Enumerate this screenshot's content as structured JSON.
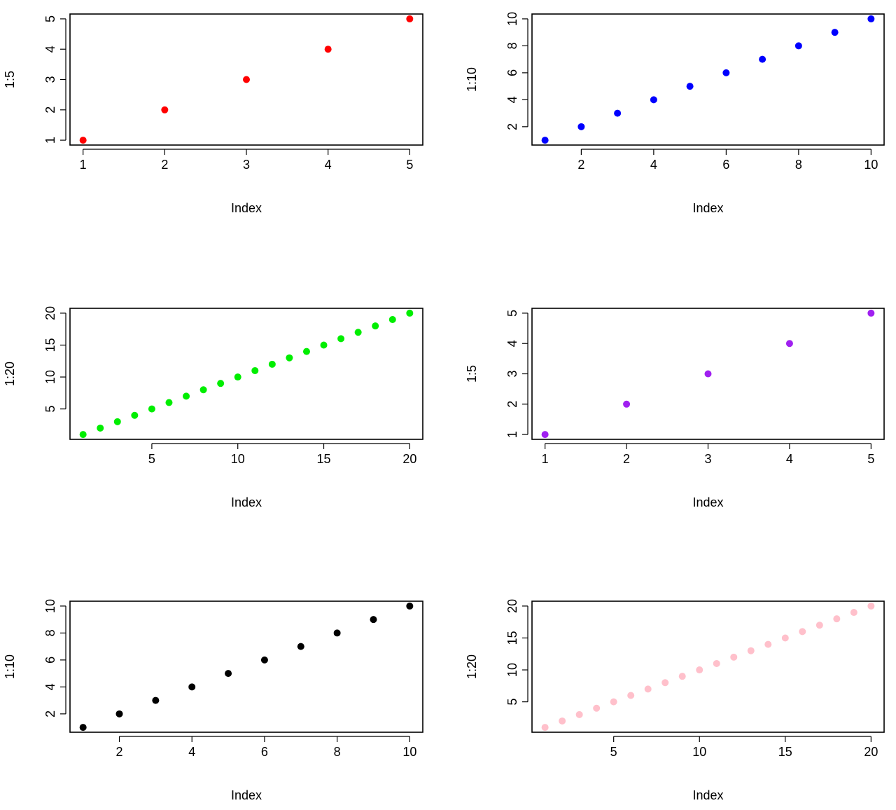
{
  "chart_data": [
    {
      "type": "scatter",
      "title": "",
      "xlabel": "Index",
      "ylabel": "1:5",
      "color": "#ff0000",
      "x": [
        1,
        2,
        3,
        4,
        5
      ],
      "y": [
        1,
        2,
        3,
        4,
        5
      ],
      "xlim": [
        1,
        5
      ],
      "ylim": [
        1,
        5
      ],
      "xticks": [
        1,
        2,
        3,
        4,
        5
      ],
      "yticks": [
        1,
        2,
        3,
        4,
        5
      ],
      "grid": false
    },
    {
      "type": "scatter",
      "title": "",
      "xlabel": "Index",
      "ylabel": "1:10",
      "color": "#0000ff",
      "x": [
        1,
        2,
        3,
        4,
        5,
        6,
        7,
        8,
        9,
        10
      ],
      "y": [
        1,
        2,
        3,
        4,
        5,
        6,
        7,
        8,
        9,
        10
      ],
      "xlim": [
        1,
        10
      ],
      "ylim": [
        1,
        10
      ],
      "xticks": [
        2,
        4,
        6,
        8,
        10
      ],
      "yticks": [
        2,
        4,
        6,
        8,
        10
      ],
      "grid": false
    },
    {
      "type": "scatter",
      "title": "",
      "xlabel": "Index",
      "ylabel": "1:20",
      "color": "#00ee00",
      "x": [
        1,
        2,
        3,
        4,
        5,
        6,
        7,
        8,
        9,
        10,
        11,
        12,
        13,
        14,
        15,
        16,
        17,
        18,
        19,
        20
      ],
      "y": [
        1,
        2,
        3,
        4,
        5,
        6,
        7,
        8,
        9,
        10,
        11,
        12,
        13,
        14,
        15,
        16,
        17,
        18,
        19,
        20
      ],
      "xlim": [
        1,
        20
      ],
      "ylim": [
        1,
        20
      ],
      "xticks": [
        5,
        10,
        15,
        20
      ],
      "yticks": [
        5,
        10,
        15,
        20
      ],
      "grid": false
    },
    {
      "type": "scatter",
      "title": "",
      "xlabel": "Index",
      "ylabel": "1:5",
      "color": "#a020f0",
      "x": [
        1,
        2,
        3,
        4,
        5
      ],
      "y": [
        1,
        2,
        3,
        4,
        5
      ],
      "xlim": [
        1,
        5
      ],
      "ylim": [
        1,
        5
      ],
      "xticks": [
        1,
        2,
        3,
        4,
        5
      ],
      "yticks": [
        1,
        2,
        3,
        4,
        5
      ],
      "grid": false
    },
    {
      "type": "scatter",
      "title": "",
      "xlabel": "Index",
      "ylabel": "1:10",
      "color": "#000000",
      "x": [
        1,
        2,
        3,
        4,
        5,
        6,
        7,
        8,
        9,
        10
      ],
      "y": [
        1,
        2,
        3,
        4,
        5,
        6,
        7,
        8,
        9,
        10
      ],
      "xlim": [
        1,
        10
      ],
      "ylim": [
        1,
        10
      ],
      "xticks": [
        2,
        4,
        6,
        8,
        10
      ],
      "yticks": [
        2,
        4,
        6,
        8,
        10
      ],
      "grid": false
    },
    {
      "type": "scatter",
      "title": "",
      "xlabel": "Index",
      "ylabel": "1:20",
      "color": "#ffc0cb",
      "x": [
        1,
        2,
        3,
        4,
        5,
        6,
        7,
        8,
        9,
        10,
        11,
        12,
        13,
        14,
        15,
        16,
        17,
        18,
        19,
        20
      ],
      "y": [
        1,
        2,
        3,
        4,
        5,
        6,
        7,
        8,
        9,
        10,
        11,
        12,
        13,
        14,
        15,
        16,
        17,
        18,
        19,
        20
      ],
      "xlim": [
        1,
        20
      ],
      "ylim": [
        1,
        20
      ],
      "xticks": [
        5,
        10,
        15,
        20
      ],
      "yticks": [
        5,
        10,
        15,
        20
      ],
      "grid": false
    }
  ]
}
